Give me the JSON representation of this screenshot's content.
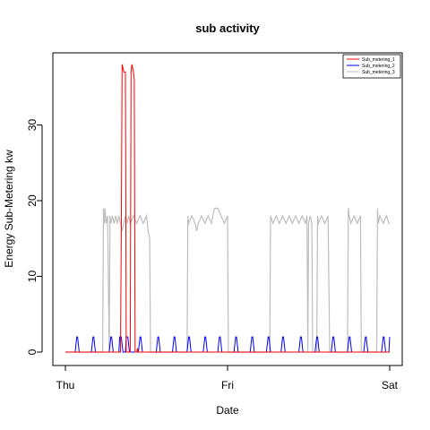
{
  "chart_data": {
    "type": "line",
    "title": "sub activity",
    "xlabel": "Date",
    "ylabel": "Energy Sub-Metering kw",
    "x_ticks": [
      "Thu",
      "Fri",
      "Sat"
    ],
    "x_range_days": [
      0,
      2
    ],
    "y_ticks": [
      0,
      10,
      20,
      30
    ],
    "ylim": [
      0,
      38
    ],
    "legend_position": "top-right",
    "grid": false,
    "series": [
      {
        "name": "Sub_metering_1",
        "color": "#ff0000",
        "points": [
          [
            0,
            0
          ],
          [
            0.34,
            0
          ],
          [
            0.345,
            16
          ],
          [
            0.35,
            38
          ],
          [
            0.36,
            37
          ],
          [
            0.37,
            37
          ],
          [
            0.375,
            0
          ],
          [
            0.4,
            0
          ],
          [
            0.405,
            37
          ],
          [
            0.41,
            38
          ],
          [
            0.42,
            37
          ],
          [
            0.425,
            36
          ],
          [
            0.43,
            0
          ],
          [
            0.44,
            0
          ],
          [
            0.445,
            0.5
          ],
          [
            0.45,
            0
          ],
          [
            2,
            0
          ]
        ]
      },
      {
        "name": "Sub_metering_2",
        "color": "#0000ff",
        "points": [
          [
            0,
            0
          ],
          [
            0.06,
            0
          ],
          [
            0.065,
            1
          ],
          [
            0.07,
            2
          ],
          [
            0.075,
            2
          ],
          [
            0.08,
            1
          ],
          [
            0.085,
            0
          ],
          [
            0.16,
            0
          ],
          [
            0.165,
            1
          ],
          [
            0.17,
            2
          ],
          [
            0.175,
            2
          ],
          [
            0.18,
            1
          ],
          [
            0.185,
            0
          ],
          [
            0.27,
            0
          ],
          [
            0.275,
            1
          ],
          [
            0.28,
            2
          ],
          [
            0.285,
            2
          ],
          [
            0.29,
            1
          ],
          [
            0.295,
            0
          ],
          [
            0.33,
            0
          ],
          [
            0.335,
            2
          ],
          [
            0.345,
            2
          ],
          [
            0.35,
            1
          ],
          [
            0.355,
            0
          ],
          [
            0.37,
            0
          ],
          [
            0.375,
            2
          ],
          [
            0.385,
            2
          ],
          [
            0.39,
            1
          ],
          [
            0.395,
            0
          ],
          [
            0.45,
            0
          ],
          [
            0.455,
            1
          ],
          [
            0.46,
            2
          ],
          [
            0.465,
            2
          ],
          [
            0.47,
            1
          ],
          [
            0.475,
            0
          ],
          [
            0.56,
            0
          ],
          [
            0.565,
            1
          ],
          [
            0.57,
            2
          ],
          [
            0.575,
            2
          ],
          [
            0.58,
            1
          ],
          [
            0.585,
            0
          ],
          [
            0.66,
            0
          ],
          [
            0.665,
            1
          ],
          [
            0.67,
            2
          ],
          [
            0.675,
            2
          ],
          [
            0.68,
            1
          ],
          [
            0.685,
            0
          ],
          [
            0.75,
            0
          ],
          [
            0.755,
            1
          ],
          [
            0.76,
            2
          ],
          [
            0.765,
            2
          ],
          [
            0.77,
            1
          ],
          [
            0.775,
            0
          ],
          [
            0.85,
            0
          ],
          [
            0.855,
            1
          ],
          [
            0.86,
            2
          ],
          [
            0.865,
            2
          ],
          [
            0.87,
            1
          ],
          [
            0.875,
            0
          ],
          [
            0.94,
            0
          ],
          [
            0.945,
            1
          ],
          [
            0.95,
            2
          ],
          [
            0.955,
            2
          ],
          [
            0.96,
            1
          ],
          [
            0.965,
            0
          ],
          [
            1.04,
            0
          ],
          [
            1.045,
            1
          ],
          [
            1.05,
            2
          ],
          [
            1.055,
            2
          ],
          [
            1.06,
            1
          ],
          [
            1.065,
            0
          ],
          [
            1.14,
            0
          ],
          [
            1.145,
            1
          ],
          [
            1.15,
            2
          ],
          [
            1.155,
            2
          ],
          [
            1.16,
            1
          ],
          [
            1.165,
            0
          ],
          [
            1.24,
            0
          ],
          [
            1.245,
            1
          ],
          [
            1.25,
            2
          ],
          [
            1.255,
            2
          ],
          [
            1.26,
            1
          ],
          [
            1.265,
            0
          ],
          [
            1.33,
            0
          ],
          [
            1.335,
            1
          ],
          [
            1.34,
            2
          ],
          [
            1.345,
            2
          ],
          [
            1.35,
            1
          ],
          [
            1.355,
            0
          ],
          [
            1.44,
            0
          ],
          [
            1.445,
            1
          ],
          [
            1.45,
            2
          ],
          [
            1.455,
            2
          ],
          [
            1.46,
            1
          ],
          [
            1.465,
            0
          ],
          [
            1.54,
            0
          ],
          [
            1.545,
            1
          ],
          [
            1.55,
            2
          ],
          [
            1.555,
            2
          ],
          [
            1.56,
            1
          ],
          [
            1.565,
            0
          ],
          [
            1.64,
            0
          ],
          [
            1.645,
            1
          ],
          [
            1.65,
            2
          ],
          [
            1.655,
            2
          ],
          [
            1.66,
            1
          ],
          [
            1.665,
            0
          ],
          [
            1.74,
            0
          ],
          [
            1.745,
            1
          ],
          [
            1.75,
            2
          ],
          [
            1.755,
            2
          ],
          [
            1.76,
            1
          ],
          [
            1.765,
            0
          ],
          [
            1.84,
            0
          ],
          [
            1.845,
            1
          ],
          [
            1.85,
            2
          ],
          [
            1.855,
            2
          ],
          [
            1.86,
            1
          ],
          [
            1.865,
            0
          ],
          [
            1.95,
            0
          ],
          [
            1.955,
            1
          ],
          [
            1.96,
            2
          ],
          [
            1.965,
            2
          ],
          [
            1.97,
            1
          ],
          [
            1.975,
            0
          ],
          [
            1.995,
            0
          ],
          [
            2,
            2
          ]
        ]
      },
      {
        "name": "Sub_metering_3",
        "color": "#bebebe",
        "points": [
          [
            0,
            0
          ],
          [
            0.23,
            0
          ],
          [
            0.235,
            19
          ],
          [
            0.24,
            17
          ],
          [
            0.245,
            19
          ],
          [
            0.25,
            17
          ],
          [
            0.26,
            18
          ],
          [
            0.27,
            0
          ],
          [
            0.275,
            18
          ],
          [
            0.28,
            17
          ],
          [
            0.29,
            18
          ],
          [
            0.3,
            17
          ],
          [
            0.31,
            18
          ],
          [
            0.32,
            17
          ],
          [
            0.33,
            18
          ],
          [
            0.34,
            17
          ],
          [
            0.35,
            16
          ],
          [
            0.36,
            17
          ],
          [
            0.37,
            18
          ],
          [
            0.38,
            17
          ],
          [
            0.39,
            18
          ],
          [
            0.4,
            17
          ],
          [
            0.42,
            18
          ],
          [
            0.44,
            17
          ],
          [
            0.46,
            18
          ],
          [
            0.48,
            17
          ],
          [
            0.5,
            18
          ],
          [
            0.51,
            16
          ],
          [
            0.52,
            15
          ],
          [
            0.525,
            0
          ],
          [
            0.75,
            0
          ],
          [
            0.755,
            18
          ],
          [
            0.76,
            17
          ],
          [
            0.78,
            18
          ],
          [
            0.8,
            17
          ],
          [
            0.81,
            16
          ],
          [
            0.82,
            17
          ],
          [
            0.84,
            18
          ],
          [
            0.86,
            17
          ],
          [
            0.88,
            18
          ],
          [
            0.9,
            17
          ],
          [
            0.92,
            19
          ],
          [
            0.94,
            19
          ],
          [
            0.96,
            18
          ],
          [
            0.98,
            17
          ],
          [
            1.0,
            18
          ],
          [
            1.005,
            0
          ],
          [
            1.26,
            0
          ],
          [
            1.265,
            18
          ],
          [
            1.28,
            17
          ],
          [
            1.3,
            18
          ],
          [
            1.32,
            17
          ],
          [
            1.34,
            18
          ],
          [
            1.36,
            17
          ],
          [
            1.38,
            18
          ],
          [
            1.4,
            17
          ],
          [
            1.42,
            18
          ],
          [
            1.44,
            17
          ],
          [
            1.46,
            18
          ],
          [
            1.48,
            17
          ],
          [
            1.49,
            18
          ],
          [
            1.495,
            0
          ],
          [
            1.5,
            17
          ],
          [
            1.51,
            18
          ],
          [
            1.52,
            17
          ],
          [
            1.525,
            0
          ],
          [
            1.55,
            0
          ],
          [
            1.555,
            18
          ],
          [
            1.56,
            17
          ],
          [
            1.58,
            18
          ],
          [
            1.6,
            17
          ],
          [
            1.62,
            18
          ],
          [
            1.63,
            0
          ],
          [
            1.74,
            0
          ],
          [
            1.745,
            19
          ],
          [
            1.75,
            18
          ],
          [
            1.76,
            17
          ],
          [
            1.78,
            18
          ],
          [
            1.8,
            17
          ],
          [
            1.82,
            18
          ],
          [
            1.825,
            0
          ],
          [
            1.92,
            0
          ],
          [
            1.925,
            19
          ],
          [
            1.93,
            17
          ],
          [
            1.94,
            18
          ],
          [
            1.96,
            17
          ],
          [
            1.98,
            18
          ],
          [
            1.995,
            17
          ],
          [
            2,
            17
          ]
        ]
      }
    ]
  }
}
